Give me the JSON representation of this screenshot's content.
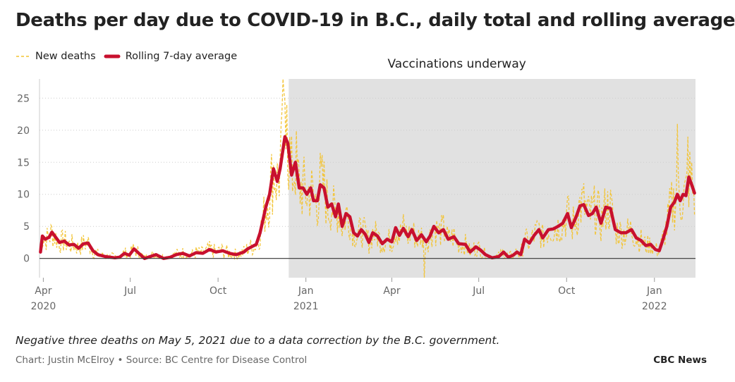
{
  "header": {
    "title": "Deaths per day due to COVID-19 in B.C., daily total and rolling average"
  },
  "legend": {
    "new_deaths": "New deaths",
    "rolling": "Rolling 7-day average"
  },
  "footer": {
    "note": "Negative three deaths on May 5, 2021 due to a data correction by the B.C. government.",
    "credit": "Chart: Justin McElroy • Source: BC Centre for Disease Control",
    "brand": "CBC News"
  },
  "chart_data": {
    "type": "line",
    "x_axis": {
      "start": "2020-03-28",
      "end": "2022-02-13",
      "ticks": [
        {
          "date": "2020-04-01",
          "label": "Apr",
          "year": "2020"
        },
        {
          "date": "2020-07-01",
          "label": "Jul",
          "year": ""
        },
        {
          "date": "2020-10-01",
          "label": "Oct",
          "year": ""
        },
        {
          "date": "2021-01-01",
          "label": "Jan",
          "year": "2021"
        },
        {
          "date": "2021-04-01",
          "label": "Apr",
          "year": ""
        },
        {
          "date": "2021-07-01",
          "label": "Jul",
          "year": ""
        },
        {
          "date": "2021-10-01",
          "label": "Oct",
          "year": ""
        },
        {
          "date": "2022-01-01",
          "label": "Jan",
          "year": "2022"
        }
      ]
    },
    "y_axis": {
      "min": -3,
      "max": 28,
      "ticks": [
        0,
        5,
        10,
        15,
        20,
        25
      ],
      "grid": true
    },
    "annotation": {
      "label": "Vaccinations underway",
      "start": "2020-12-14",
      "end": "2022-02-13",
      "color": "#e1e1e1"
    },
    "colors": {
      "new_deaths": "#f2c331",
      "rolling": "#c8102e",
      "zero_line": "#333333",
      "grid": "#cccccc"
    },
    "series": [
      {
        "name": "Rolling 7-day average",
        "style": "solid",
        "points": [
          [
            "2020-03-29",
            1
          ],
          [
            "2020-03-31",
            3.5
          ],
          [
            "2020-04-03",
            3
          ],
          [
            "2020-04-07",
            3.3
          ],
          [
            "2020-04-10",
            4.1
          ],
          [
            "2020-04-14",
            3.3
          ],
          [
            "2020-04-18",
            2.5
          ],
          [
            "2020-04-23",
            2.7
          ],
          [
            "2020-04-28",
            2.1
          ],
          [
            "2020-05-03",
            2.2
          ],
          [
            "2020-05-08",
            1.6
          ],
          [
            "2020-05-13",
            2.3
          ],
          [
            "2020-05-18",
            2.4
          ],
          [
            "2020-05-23",
            1.2
          ],
          [
            "2020-05-28",
            0.6
          ],
          [
            "2020-06-05",
            0.3
          ],
          [
            "2020-06-15",
            0.1
          ],
          [
            "2020-06-20",
            0.2
          ],
          [
            "2020-06-25",
            0.8
          ],
          [
            "2020-06-30",
            0.5
          ],
          [
            "2020-07-05",
            1.5
          ],
          [
            "2020-07-10",
            0.8
          ],
          [
            "2020-07-16",
            0
          ],
          [
            "2020-07-22",
            0.3
          ],
          [
            "2020-07-28",
            0.6
          ],
          [
            "2020-08-05",
            0
          ],
          [
            "2020-08-12",
            0.2
          ],
          [
            "2020-08-18",
            0.6
          ],
          [
            "2020-08-25",
            0.8
          ],
          [
            "2020-09-01",
            0.4
          ],
          [
            "2020-09-08",
            0.9
          ],
          [
            "2020-09-15",
            0.8
          ],
          [
            "2020-09-22",
            1.4
          ],
          [
            "2020-09-29",
            1
          ],
          [
            "2020-10-06",
            1.2
          ],
          [
            "2020-10-13",
            0.8
          ],
          [
            "2020-10-20",
            0.6
          ],
          [
            "2020-10-28",
            1
          ],
          [
            "2020-11-01",
            1.5
          ],
          [
            "2020-11-05",
            1.8
          ],
          [
            "2020-11-10",
            2.2
          ],
          [
            "2020-11-14",
            4
          ],
          [
            "2020-11-17",
            6
          ],
          [
            "2020-11-20",
            8
          ],
          [
            "2020-11-24",
            10
          ],
          [
            "2020-11-28",
            14
          ],
          [
            "2020-12-02",
            12
          ],
          [
            "2020-12-05",
            14
          ],
          [
            "2020-12-08",
            17
          ],
          [
            "2020-12-10",
            19
          ],
          [
            "2020-12-13",
            18
          ],
          [
            "2020-12-17",
            13
          ],
          [
            "2020-12-21",
            15
          ],
          [
            "2020-12-25",
            11
          ],
          [
            "2020-12-29",
            11
          ],
          [
            "2021-01-02",
            10
          ],
          [
            "2021-01-06",
            11
          ],
          [
            "2021-01-09",
            9
          ],
          [
            "2021-01-13",
            9
          ],
          [
            "2021-01-16",
            11.5
          ],
          [
            "2021-01-20",
            11
          ],
          [
            "2021-01-24",
            8
          ],
          [
            "2021-01-28",
            8.5
          ],
          [
            "2021-02-01",
            6.5
          ],
          [
            "2021-02-04",
            8.5
          ],
          [
            "2021-02-08",
            5
          ],
          [
            "2021-02-12",
            7
          ],
          [
            "2021-02-16",
            6.5
          ],
          [
            "2021-02-20",
            4
          ],
          [
            "2021-02-24",
            3.5
          ],
          [
            "2021-02-28",
            4.5
          ],
          [
            "2021-03-04",
            3.8
          ],
          [
            "2021-03-08",
            2.5
          ],
          [
            "2021-03-12",
            4
          ],
          [
            "2021-03-17",
            3.5
          ],
          [
            "2021-03-22",
            2.3
          ],
          [
            "2021-03-27",
            3
          ],
          [
            "2021-04-01",
            2.6
          ],
          [
            "2021-04-05",
            4.8
          ],
          [
            "2021-04-09",
            3.6
          ],
          [
            "2021-04-13",
            4.7
          ],
          [
            "2021-04-18",
            3.4
          ],
          [
            "2021-04-22",
            4.5
          ],
          [
            "2021-04-27",
            2.8
          ],
          [
            "2021-05-02",
            3.7
          ],
          [
            "2021-05-07",
            2.6
          ],
          [
            "2021-05-11",
            3.5
          ],
          [
            "2021-05-15",
            5
          ],
          [
            "2021-05-20",
            4
          ],
          [
            "2021-05-25",
            4.5
          ],
          [
            "2021-05-30",
            3
          ],
          [
            "2021-06-05",
            3.4
          ],
          [
            "2021-06-10",
            2.3
          ],
          [
            "2021-06-17",
            2.2
          ],
          [
            "2021-06-22",
            1
          ],
          [
            "2021-06-28",
            1.8
          ],
          [
            "2021-07-03",
            1.3
          ],
          [
            "2021-07-08",
            0.6
          ],
          [
            "2021-07-15",
            0.1
          ],
          [
            "2021-07-22",
            0.3
          ],
          [
            "2021-07-27",
            1
          ],
          [
            "2021-08-01",
            0.2
          ],
          [
            "2021-08-06",
            0.5
          ],
          [
            "2021-08-10",
            1
          ],
          [
            "2021-08-14",
            0.6
          ],
          [
            "2021-08-18",
            3
          ],
          [
            "2021-08-23",
            2.4
          ],
          [
            "2021-08-28",
            3.6
          ],
          [
            "2021-09-02",
            4.5
          ],
          [
            "2021-09-06",
            3.2
          ],
          [
            "2021-09-12",
            4.5
          ],
          [
            "2021-09-17",
            4.6
          ],
          [
            "2021-09-22",
            5
          ],
          [
            "2021-09-27",
            5.5
          ],
          [
            "2021-10-02",
            7
          ],
          [
            "2021-10-06",
            4.8
          ],
          [
            "2021-10-11",
            6.5
          ],
          [
            "2021-10-15",
            8.2
          ],
          [
            "2021-10-19",
            8.4
          ],
          [
            "2021-10-24",
            6.7
          ],
          [
            "2021-10-28",
            7
          ],
          [
            "2021-11-01",
            8
          ],
          [
            "2021-11-06",
            5.5
          ],
          [
            "2021-11-11",
            8
          ],
          [
            "2021-11-16",
            7.8
          ],
          [
            "2021-11-21",
            4.5
          ],
          [
            "2021-11-27",
            4
          ],
          [
            "2021-12-02",
            4
          ],
          [
            "2021-12-08",
            4.5
          ],
          [
            "2021-12-13",
            3.2
          ],
          [
            "2021-12-18",
            2.8
          ],
          [
            "2021-12-23",
            2
          ],
          [
            "2021-12-28",
            2.2
          ],
          [
            "2022-01-02",
            1.4
          ],
          [
            "2022-01-06",
            1.2
          ],
          [
            "2022-01-10",
            3
          ],
          [
            "2022-01-14",
            5
          ],
          [
            "2022-01-18",
            8
          ],
          [
            "2022-01-22",
            8.8
          ],
          [
            "2022-01-25",
            10
          ],
          [
            "2022-01-28",
            9
          ],
          [
            "2022-01-31",
            10
          ],
          [
            "2022-02-03",
            9.8
          ],
          [
            "2022-02-06",
            12.7
          ],
          [
            "2022-02-09",
            11.5
          ],
          [
            "2022-02-12",
            10.2
          ]
        ]
      }
    ]
  }
}
